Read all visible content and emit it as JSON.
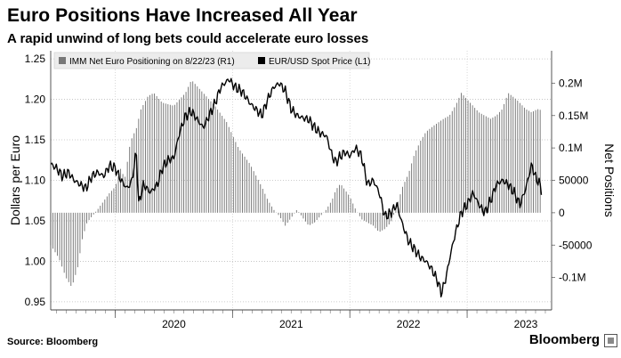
{
  "header": {
    "title": "Euro Positions Have Increased All Year",
    "subtitle": "A rapid unwind of long bets could accelerate euro losses"
  },
  "footer": {
    "source": "Source: Bloomberg",
    "brand": "Bloomberg"
  },
  "chart_data": {
    "type": "bar",
    "title": "Euro Positions Have Increased All Year",
    "left_axis": {
      "label": "Dollars per Euro",
      "range": [
        0.94,
        1.26
      ],
      "ticks": [
        0.95,
        1.0,
        1.05,
        1.1,
        1.15,
        1.2,
        1.25
      ],
      "tick_labels": [
        "0.95",
        "1.00",
        "1.05",
        "1.10",
        "1.15",
        "1.20",
        "1.25"
      ]
    },
    "right_axis": {
      "label": "Net Positions",
      "range": [
        -150000,
        250000
      ],
      "ticks": [
        -100000,
        -50000,
        0,
        50000,
        100000,
        150000,
        200000
      ],
      "tick_labels": [
        "-0.1M",
        "-50000",
        "0",
        "50000",
        "0.1M",
        "0.15M",
        "0.2M"
      ]
    },
    "x_axis": {
      "range": [
        2019.45,
        2023.72
      ],
      "year_ticks": [
        2020,
        2021,
        2022,
        2023
      ],
      "year_labels": [
        "2020",
        "2021",
        "2022",
        "2023"
      ]
    },
    "legend": [
      {
        "name": "IMM Net Euro Positioning  on 8/22/23 (R1)",
        "color": "#777777"
      },
      {
        "name": "EUR/USD Spot Price (L1)",
        "color": "#000000"
      }
    ],
    "series": [
      {
        "name": "IMM Net Euro Positioning",
        "axis": "right",
        "style": "weekly-bars",
        "points": [
          [
            2019.45,
            -50000
          ],
          [
            2019.52,
            -70000
          ],
          [
            2019.58,
            -100000
          ],
          [
            2019.63,
            -115000
          ],
          [
            2019.68,
            -85000
          ],
          [
            2019.72,
            -40000
          ],
          [
            2019.76,
            -15000
          ],
          [
            2019.85,
            5000
          ],
          [
            2019.95,
            30000
          ],
          [
            2020.0,
            40000
          ],
          [
            2020.05,
            70000
          ],
          [
            2020.08,
            50000
          ],
          [
            2020.13,
            110000
          ],
          [
            2020.18,
            130000
          ],
          [
            2020.22,
            160000
          ],
          [
            2020.28,
            180000
          ],
          [
            2020.33,
            185000
          ],
          [
            2020.4,
            170000
          ],
          [
            2020.5,
            165000
          ],
          [
            2020.6,
            185000
          ],
          [
            2020.65,
            205000
          ],
          [
            2020.75,
            185000
          ],
          [
            2020.85,
            165000
          ],
          [
            2020.95,
            140000
          ],
          [
            2021.0,
            120000
          ],
          [
            2021.05,
            100000
          ],
          [
            2021.15,
            75000
          ],
          [
            2021.25,
            40000
          ],
          [
            2021.3,
            20000
          ],
          [
            2021.35,
            5000
          ],
          [
            2021.4,
            -5000
          ],
          [
            2021.45,
            -20000
          ],
          [
            2021.5,
            -8000
          ],
          [
            2021.55,
            5000
          ],
          [
            2021.6,
            -8000
          ],
          [
            2021.65,
            -20000
          ],
          [
            2021.7,
            -15000
          ],
          [
            2021.75,
            -5000
          ],
          [
            2021.8,
            5000
          ],
          [
            2021.85,
            20000
          ],
          [
            2021.88,
            35000
          ],
          [
            2021.92,
            45000
          ],
          [
            2021.96,
            35000
          ],
          [
            2022.0,
            25000
          ],
          [
            2022.05,
            5000
          ],
          [
            2022.1,
            -10000
          ],
          [
            2022.2,
            -20000
          ],
          [
            2022.25,
            -30000
          ],
          [
            2022.3,
            -25000
          ],
          [
            2022.35,
            -15000
          ],
          [
            2022.4,
            10000
          ],
          [
            2022.45,
            40000
          ],
          [
            2022.5,
            60000
          ],
          [
            2022.55,
            90000
          ],
          [
            2022.6,
            110000
          ],
          [
            2022.65,
            125000
          ],
          [
            2022.72,
            135000
          ],
          [
            2022.8,
            145000
          ],
          [
            2022.85,
            150000
          ],
          [
            2022.9,
            165000
          ],
          [
            2022.95,
            185000
          ],
          [
            2023.0,
            175000
          ],
          [
            2023.05,
            165000
          ],
          [
            2023.1,
            155000
          ],
          [
            2023.2,
            145000
          ],
          [
            2023.25,
            150000
          ],
          [
            2023.3,
            160000
          ],
          [
            2023.35,
            185000
          ],
          [
            2023.42,
            175000
          ],
          [
            2023.5,
            160000
          ],
          [
            2023.55,
            155000
          ],
          [
            2023.6,
            160000
          ],
          [
            2023.64,
            158000
          ]
        ]
      },
      {
        "name": "EUR/USD Spot Price",
        "axis": "left",
        "style": "line",
        "points": [
          [
            2019.45,
            1.12
          ],
          [
            2019.5,
            1.115
          ],
          [
            2019.55,
            1.105
          ],
          [
            2019.6,
            1.11
          ],
          [
            2019.65,
            1.1
          ],
          [
            2019.7,
            1.095
          ],
          [
            2019.75,
            1.09
          ],
          [
            2019.8,
            1.105
          ],
          [
            2019.85,
            1.11
          ],
          [
            2019.9,
            1.105
          ],
          [
            2019.95,
            1.118
          ],
          [
            2020.0,
            1.115
          ],
          [
            2020.05,
            1.1
          ],
          [
            2020.1,
            1.09
          ],
          [
            2020.14,
            1.098
          ],
          [
            2020.18,
            1.135
          ],
          [
            2020.2,
            1.07
          ],
          [
            2020.24,
            1.095
          ],
          [
            2020.3,
            1.085
          ],
          [
            2020.36,
            1.095
          ],
          [
            2020.4,
            1.115
          ],
          [
            2020.45,
            1.125
          ],
          [
            2020.5,
            1.128
          ],
          [
            2020.55,
            1.16
          ],
          [
            2020.6,
            1.18
          ],
          [
            2020.65,
            1.185
          ],
          [
            2020.7,
            1.175
          ],
          [
            2020.75,
            1.165
          ],
          [
            2020.8,
            1.18
          ],
          [
            2020.85,
            1.195
          ],
          [
            2020.9,
            1.215
          ],
          [
            2020.97,
            1.225
          ],
          [
            2021.02,
            1.215
          ],
          [
            2021.08,
            1.21
          ],
          [
            2021.15,
            1.195
          ],
          [
            2021.25,
            1.18
          ],
          [
            2021.3,
            1.2
          ],
          [
            2021.35,
            1.215
          ],
          [
            2021.4,
            1.22
          ],
          [
            2021.45,
            1.21
          ],
          [
            2021.5,
            1.188
          ],
          [
            2021.55,
            1.18
          ],
          [
            2021.6,
            1.177
          ],
          [
            2021.65,
            1.175
          ],
          [
            2021.7,
            1.165
          ],
          [
            2021.75,
            1.158
          ],
          [
            2021.8,
            1.155
          ],
          [
            2021.85,
            1.13
          ],
          [
            2021.88,
            1.122
          ],
          [
            2021.92,
            1.13
          ],
          [
            2021.96,
            1.135
          ],
          [
            2022.0,
            1.13
          ],
          [
            2022.05,
            1.14
          ],
          [
            2022.1,
            1.13
          ],
          [
            2022.15,
            1.095
          ],
          [
            2022.2,
            1.1
          ],
          [
            2022.25,
            1.085
          ],
          [
            2022.3,
            1.055
          ],
          [
            2022.35,
            1.06
          ],
          [
            2022.4,
            1.07
          ],
          [
            2022.45,
            1.045
          ],
          [
            2022.5,
            1.025
          ],
          [
            2022.55,
            1.015
          ],
          [
            2022.6,
            1.005
          ],
          [
            2022.65,
            1.0
          ],
          [
            2022.7,
            0.99
          ],
          [
            2022.75,
            0.975
          ],
          [
            2022.78,
            0.96
          ],
          [
            2022.82,
            0.98
          ],
          [
            2022.86,
            1.01
          ],
          [
            2022.9,
            1.035
          ],
          [
            2022.95,
            1.06
          ],
          [
            2023.0,
            1.07
          ],
          [
            2023.05,
            1.085
          ],
          [
            2023.1,
            1.07
          ],
          [
            2023.15,
            1.06
          ],
          [
            2023.2,
            1.075
          ],
          [
            2023.25,
            1.095
          ],
          [
            2023.3,
            1.1
          ],
          [
            2023.35,
            1.095
          ],
          [
            2023.4,
            1.085
          ],
          [
            2023.45,
            1.07
          ],
          [
            2023.5,
            1.09
          ],
          [
            2023.55,
            1.12
          ],
          [
            2023.58,
            1.105
          ],
          [
            2023.62,
            1.095
          ],
          [
            2023.64,
            1.085
          ]
        ]
      }
    ]
  }
}
